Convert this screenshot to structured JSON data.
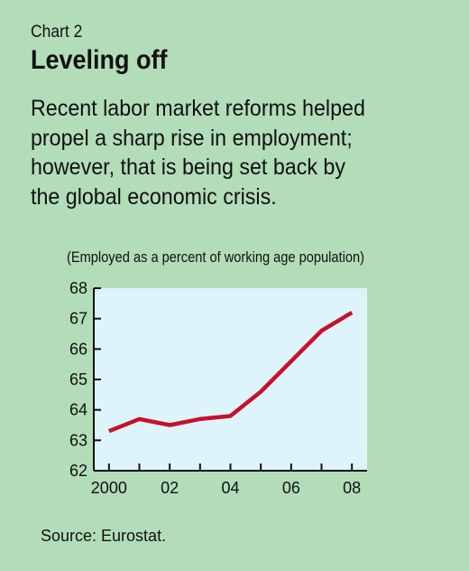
{
  "header": {
    "chart_label": "Chart 2",
    "title": "Leveling off",
    "subtitle_lines": [
      "Recent labor market reforms helped",
      "propel a sharp rise in employment;",
      "however, that is being set back by",
      "the global economic crisis."
    ]
  },
  "chart_data": {
    "type": "line",
    "title": "Leveling off",
    "subtitle": "Recent labor market reforms helped propel a sharp rise in employment; however, that is being set back by the global economic crisis.",
    "units_note": "(Employed as a percent of working age population)",
    "x": [
      2000,
      2001,
      2002,
      2003,
      2004,
      2005,
      2006,
      2007,
      2008
    ],
    "series": [
      {
        "values": [
          63.3,
          63.7,
          63.5,
          63.7,
          63.8,
          64.6,
          65.6,
          66.6,
          67.2
        ]
      }
    ],
    "xlim": [
      1999.5,
      2008.5
    ],
    "ylim": [
      62,
      68
    ],
    "x_ticks": [
      2000,
      2002,
      2004,
      2006,
      2008
    ],
    "x_tick_labels": [
      "2000",
      "02",
      "04",
      "06",
      "08"
    ],
    "y_ticks": [
      62,
      63,
      64,
      65,
      66,
      67,
      68
    ],
    "y_tick_labels": [
      "62",
      "63",
      "64",
      "65",
      "66",
      "67",
      "68"
    ],
    "grid": false,
    "legend": "none"
  },
  "colors": {
    "background": "#b2ddb8",
    "plot_area": "#def4fb",
    "line": "#c8102e",
    "axis": "#111111"
  },
  "footer": {
    "source": "Source: Eurostat."
  }
}
